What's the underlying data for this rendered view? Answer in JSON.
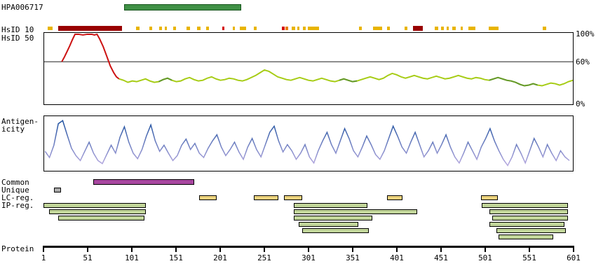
{
  "header": {
    "id": "HPA006717"
  },
  "antigen_bar": {
    "start": 92,
    "end": 225,
    "fill": "#3f9045",
    "border": "#14541a"
  },
  "hsid10": {
    "label": "HsID 10",
    "colors": {
      "yellow": "#e8b400",
      "darkred": "#990000",
      "red": "#d40000",
      "orange": "#e87c00"
    },
    "segments": [
      {
        "start": 6,
        "end": 11,
        "color": "yellow"
      },
      {
        "start": 18,
        "end": 90,
        "color": "darkred"
      },
      {
        "start": 106,
        "end": 110,
        "color": "yellow"
      },
      {
        "start": 121,
        "end": 124,
        "color": "yellow"
      },
      {
        "start": 132,
        "end": 135,
        "color": "yellow"
      },
      {
        "start": 138,
        "end": 141,
        "color": "yellow"
      },
      {
        "start": 148,
        "end": 151,
        "color": "yellow"
      },
      {
        "start": 163,
        "end": 167,
        "color": "yellow"
      },
      {
        "start": 175,
        "end": 179,
        "color": "yellow"
      },
      {
        "start": 185,
        "end": 188,
        "color": "yellow"
      },
      {
        "start": 203,
        "end": 206,
        "color": "red"
      },
      {
        "start": 215,
        "end": 218,
        "color": "yellow"
      },
      {
        "start": 223,
        "end": 230,
        "color": "yellow"
      },
      {
        "start": 239,
        "end": 242,
        "color": "yellow"
      },
      {
        "start": 271,
        "end": 274,
        "color": "red"
      },
      {
        "start": 275,
        "end": 278,
        "color": "orange"
      },
      {
        "start": 282,
        "end": 286,
        "color": "yellow"
      },
      {
        "start": 288,
        "end": 291,
        "color": "yellow"
      },
      {
        "start": 295,
        "end": 298,
        "color": "yellow"
      },
      {
        "start": 300,
        "end": 313,
        "color": "yellow"
      },
      {
        "start": 358,
        "end": 361,
        "color": "yellow"
      },
      {
        "start": 374,
        "end": 384,
        "color": "yellow"
      },
      {
        "start": 390,
        "end": 393,
        "color": "yellow"
      },
      {
        "start": 410,
        "end": 413,
        "color": "yellow"
      },
      {
        "start": 419,
        "end": 430,
        "color": "darkred"
      },
      {
        "start": 444,
        "end": 448,
        "color": "yellow"
      },
      {
        "start": 451,
        "end": 454,
        "color": "yellow"
      },
      {
        "start": 457,
        "end": 460,
        "color": "yellow"
      },
      {
        "start": 464,
        "end": 468,
        "color": "yellow"
      },
      {
        "start": 473,
        "end": 476,
        "color": "yellow"
      },
      {
        "start": 482,
        "end": 490,
        "color": "yellow"
      },
      {
        "start": 505,
        "end": 516,
        "color": "yellow"
      },
      {
        "start": 566,
        "end": 570,
        "color": "yellow"
      }
    ]
  },
  "hsid50": {
    "label": "HsID 50",
    "yticks": {
      "top": "100%",
      "mid": "60%",
      "bottom": "0%"
    }
  },
  "antigenicity": {
    "label_line1": "Antigen-",
    "label_line2": "icity"
  },
  "regions": {
    "tracks": [
      {
        "label": "Common",
        "bars": [
          {
            "start": 57,
            "end": 172,
            "fill": "#a847a0"
          }
        ]
      },
      {
        "label": "Unique",
        "bars": [
          {
            "start": 13,
            "end": 21,
            "fill": "#ababab"
          }
        ]
      },
      {
        "label": "LC-reg.",
        "bars": [
          {
            "start": 177,
            "end": 197,
            "fill": "#edd27d"
          },
          {
            "start": 239,
            "end": 267,
            "fill": "#edd27d"
          },
          {
            "start": 273,
            "end": 294,
            "fill": "#edd27d"
          },
          {
            "start": 390,
            "end": 407,
            "fill": "#edd27d"
          },
          {
            "start": 496,
            "end": 515,
            "fill": "#edd27d"
          }
        ]
      },
      {
        "label": "IP-reg.",
        "bars": [
          {
            "start": 1,
            "end": 117,
            "fill": "#c2d69a"
          },
          {
            "start": 284,
            "end": 368,
            "fill": "#c2d69a"
          },
          {
            "start": 497,
            "end": 595,
            "fill": "#c2d69a"
          }
        ]
      }
    ],
    "ip_extra_rows": [
      [
        {
          "start": 7,
          "end": 117,
          "fill": "#c2d69a"
        },
        {
          "start": 284,
          "end": 424,
          "fill": "#c2d69a"
        },
        {
          "start": 506,
          "end": 595,
          "fill": "#c2d69a"
        }
      ],
      [
        {
          "start": 18,
          "end": 115,
          "fill": "#c2d69a"
        },
        {
          "start": 284,
          "end": 373,
          "fill": "#c2d69a"
        },
        {
          "start": 509,
          "end": 595,
          "fill": "#c2d69a"
        }
      ],
      [
        {
          "start": 290,
          "end": 357,
          "fill": "#c2d69a"
        },
        {
          "start": 506,
          "end": 591,
          "fill": "#c2d69a"
        }
      ],
      [
        {
          "start": 294,
          "end": 369,
          "fill": "#c2d69a"
        },
        {
          "start": 514,
          "end": 592,
          "fill": "#c2d69a"
        }
      ],
      [
        {
          "start": 516,
          "end": 578,
          "fill": "#c2d69a"
        }
      ]
    ]
  },
  "protein_axis": {
    "label": "Protein",
    "min": 1,
    "max": 601,
    "ticks": [
      1,
      51,
      101,
      151,
      201,
      251,
      301,
      351,
      401,
      451,
      501,
      551,
      601
    ]
  },
  "chart_data": [
    {
      "type": "line",
      "title": "HsID 50",
      "xlabel": "Protein",
      "ylabel": "",
      "xlim": [
        1,
        601
      ],
      "ylim": [
        0,
        100
      ],
      "ytick_labels": [
        "0%",
        "60%",
        "100%"
      ],
      "threshold": 60,
      "series": [
        {
          "name": "high-identity-segment",
          "color": "#cc1111",
          "x": [
            21,
            24,
            27,
            30,
            33,
            36,
            40,
            45,
            50,
            55,
            58,
            61,
            64,
            68,
            72,
            76,
            80,
            83,
            86
          ],
          "values": [
            60,
            67,
            75,
            83,
            92,
            100,
            100,
            99,
            100,
            100,
            99,
            100,
            93,
            82,
            68,
            54,
            44,
            38,
            35
          ]
        },
        {
          "name": "identity-profile",
          "color": "#a6cc14",
          "dark_color": "#63982b",
          "dark_ranges": [
            [
              131,
              146
            ],
            [
              336,
              358
            ],
            [
              506,
              562
            ]
          ],
          "x_start": 86,
          "x_step": 5,
          "values": [
            35,
            33,
            30,
            32,
            31,
            33,
            35,
            32,
            30,
            31,
            34,
            36,
            33,
            31,
            32,
            35,
            37,
            34,
            32,
            33,
            36,
            38,
            35,
            33,
            34,
            36,
            35,
            33,
            32,
            34,
            37,
            40,
            44,
            48,
            46,
            42,
            38,
            36,
            34,
            33,
            35,
            37,
            35,
            33,
            32,
            34,
            36,
            34,
            32,
            31,
            33,
            35,
            33,
            31,
            32,
            34,
            36,
            38,
            36,
            34,
            36,
            40,
            43,
            41,
            38,
            36,
            38,
            40,
            38,
            36,
            35,
            37,
            39,
            37,
            35,
            36,
            38,
            40,
            38,
            36,
            35,
            37,
            36,
            34,
            33,
            35,
            37,
            35,
            33,
            32,
            30,
            27,
            25,
            26,
            28,
            26,
            25,
            27,
            29,
            28,
            26,
            28,
            31,
            33
          ]
        }
      ]
    },
    {
      "type": "line",
      "title": "Antigenicity",
      "xlabel": "Protein",
      "ylabel": "",
      "xlim": [
        1,
        601
      ],
      "ylim": [
        0,
        100
      ],
      "series": [
        {
          "name": "antigenicity-profile",
          "color_top": "#1b4f9e",
          "color_bottom": "#b7a9e0",
          "x_start": 2,
          "x_step": 5,
          "values": [
            45,
            35,
            55,
            90,
            95,
            72,
            50,
            38,
            30,
            45,
            60,
            42,
            30,
            25,
            40,
            55,
            42,
            68,
            85,
            60,
            42,
            33,
            48,
            70,
            88,
            62,
            45,
            55,
            42,
            30,
            38,
            55,
            65,
            48,
            58,
            42,
            35,
            50,
            62,
            72,
            52,
            38,
            48,
            60,
            44,
            32,
            52,
            66,
            48,
            36,
            56,
            76,
            86,
            62,
            44,
            56,
            46,
            32,
            42,
            56,
            36,
            26,
            46,
            62,
            76,
            56,
            42,
            62,
            82,
            66,
            46,
            36,
            52,
            70,
            56,
            40,
            32,
            46,
            66,
            86,
            70,
            52,
            42,
            60,
            76,
            56,
            36,
            46,
            60,
            42,
            56,
            72,
            52,
            36,
            26,
            42,
            60,
            46,
            32,
            52,
            66,
            82,
            62,
            46,
            32,
            22,
            36,
            56,
            42,
            26,
            46,
            66,
            52,
            36,
            56,
            42,
            30,
            46,
            36,
            30
          ]
        }
      ]
    }
  ]
}
